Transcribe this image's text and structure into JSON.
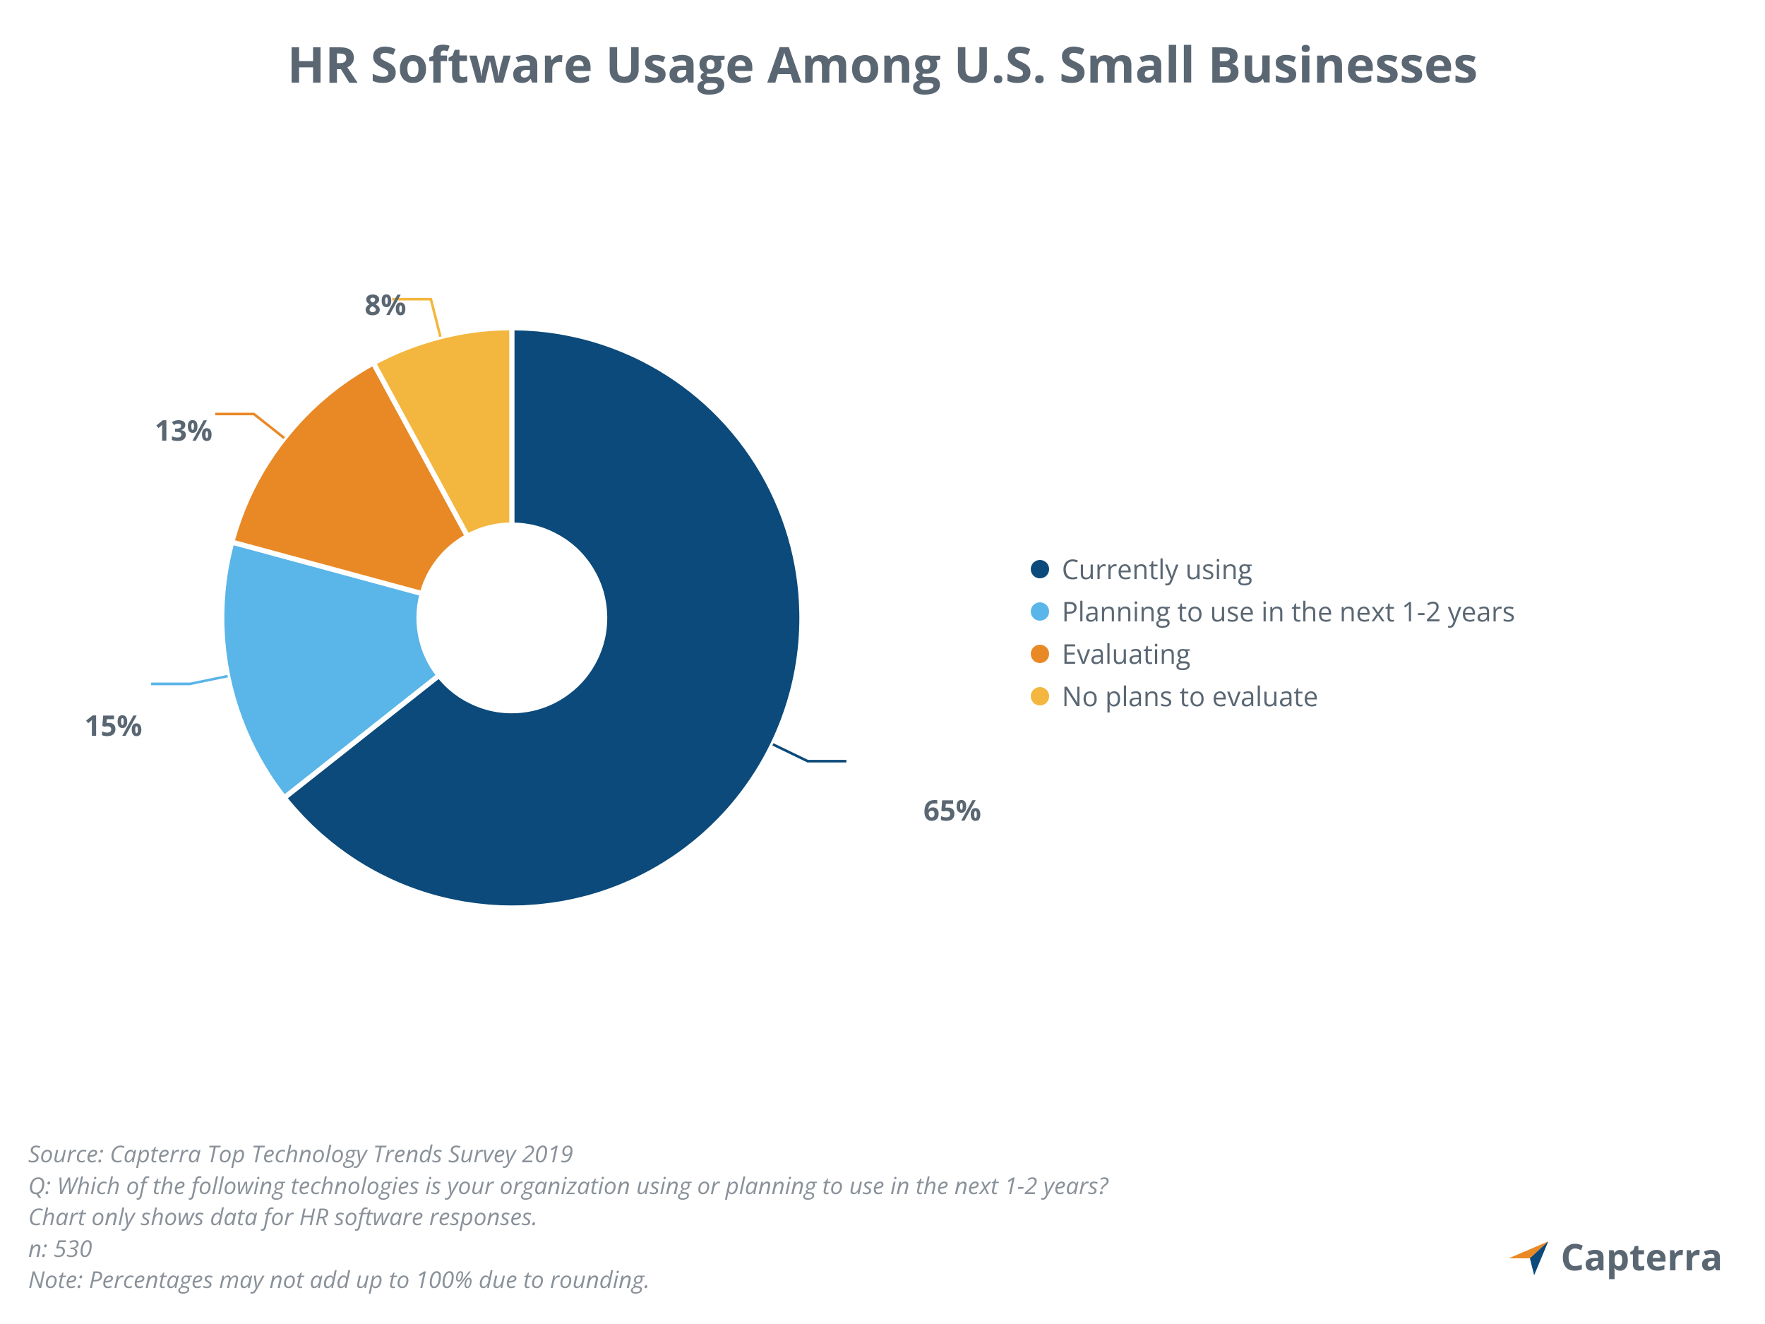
{
  "title": "HR Software Usage Among U.S. Small Businesses",
  "title_fontsize": 70,
  "title_color": "#5a6773",
  "chart": {
    "type": "pie",
    "donut_inner_ratio": 0.32,
    "start_angle_deg": -90,
    "direction": "clockwise",
    "gap_stroke_color": "#ffffff",
    "gap_stroke_width": 8,
    "background_color": "#ffffff",
    "label_fontsize": 40,
    "label_fontweight": 700,
    "label_color": "#5a6773",
    "leader_stroke_width": 4,
    "slices": [
      {
        "key": "currently_using",
        "label": "Currently using",
        "value": 65,
        "display": "65%",
        "color": "#0b4a7a"
      },
      {
        "key": "planning",
        "label": "Planning to use in the next 1-2 years",
        "value": 15,
        "display": "15%",
        "color": "#5ab5e8"
      },
      {
        "key": "evaluating",
        "label": "Evaluating",
        "value": 13,
        "display": "13%",
        "color": "#e98926"
      },
      {
        "key": "no_plans",
        "label": "No plans to evaluate",
        "value": 8,
        "display": "8%",
        "color": "#f3b63e"
      }
    ],
    "legend": {
      "fontsize": 38,
      "text_color": "#5a6773",
      "swatch_size": 26
    }
  },
  "footnotes": [
    "Source: Capterra Top Technology Trends Survey 2019",
    "Q: Which of the following technologies is your organization using or planning to use in the next 1-2 years?",
    "Chart only shows data for HR software responses.",
    "n: 530",
    "Note: Percentages may not add up to 100% due to rounding."
  ],
  "footnote_fontsize": 33,
  "footnote_color": "#8a9199",
  "logo": {
    "text": "Capterra",
    "fontsize": 52,
    "text_color": "#5a6773",
    "arrow_orange": "#e98926",
    "arrow_blue": "#0b4a7a"
  }
}
